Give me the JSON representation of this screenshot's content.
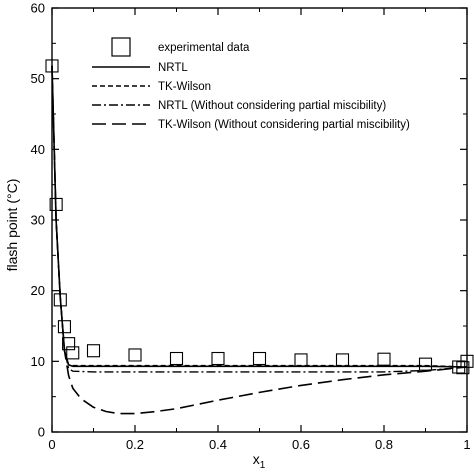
{
  "chart_data": {
    "type": "line",
    "title": "",
    "xlabel": "x",
    "xlabel_sub": "1",
    "ylabel": "flash point (°C)",
    "xlim": [
      0,
      1
    ],
    "ylim": [
      0,
      60
    ],
    "x_ticks": [
      0,
      0.2,
      0.4,
      0.6,
      0.8,
      1
    ],
    "x_tick_labels": [
      "0",
      "0.2",
      "0.4",
      "0.6",
      "0.8",
      "1"
    ],
    "y_ticks": [
      0,
      10,
      20,
      30,
      40,
      50,
      60
    ],
    "y_tick_labels": [
      "0",
      "10",
      "20",
      "30",
      "40",
      "50",
      "60"
    ],
    "grid": false,
    "legend_position": "top-right",
    "series": [
      {
        "name": "experimental data",
        "style": "square-marker",
        "x": [
          0.0,
          0.01,
          0.02,
          0.03,
          0.04,
          0.05,
          0.1,
          0.2,
          0.3,
          0.4,
          0.5,
          0.6,
          0.7,
          0.8,
          0.9,
          0.98,
          0.99,
          1.0
        ],
        "y": [
          51.8,
          32.2,
          18.7,
          14.9,
          12.5,
          11.2,
          11.5,
          10.9,
          10.4,
          10.4,
          10.4,
          10.2,
          10.2,
          10.3,
          9.6,
          9.2,
          9.1,
          10.0
        ]
      },
      {
        "name": "NRTL",
        "style": "solid",
        "x": [
          0.0,
          0.01,
          0.02,
          0.03,
          0.04,
          0.05,
          0.2,
          0.4,
          0.6,
          0.8,
          0.9,
          1.0
        ],
        "y": [
          51.8,
          30.0,
          19.0,
          11.5,
          9.5,
          9.3,
          9.3,
          9.3,
          9.3,
          9.3,
          9.3,
          9.2
        ]
      },
      {
        "name": "TK-Wilson",
        "style": "dashed-short",
        "x": [
          0.0,
          0.01,
          0.02,
          0.03,
          0.04,
          0.05,
          0.2,
          0.4,
          0.6,
          0.8,
          0.9,
          1.0
        ],
        "y": [
          51.8,
          30.0,
          19.0,
          11.5,
          9.5,
          9.4,
          9.4,
          9.4,
          9.4,
          9.4,
          9.4,
          9.2
        ]
      },
      {
        "name": "NRTL (Without considering partial miscibility)",
        "style": "dash-dot",
        "x": [
          0.0,
          0.01,
          0.02,
          0.03,
          0.04,
          0.05,
          0.1,
          0.2,
          0.3,
          0.4,
          0.5,
          0.6,
          0.7,
          0.8,
          0.9,
          1.0
        ],
        "y": [
          51.8,
          30.0,
          19.0,
          11.5,
          9.0,
          8.6,
          8.5,
          8.5,
          8.5,
          8.5,
          8.5,
          8.5,
          8.5,
          8.5,
          8.7,
          9.2
        ]
      },
      {
        "name": "TK-Wilson (Without considering partial miscibility)",
        "style": "dashed-long",
        "x": [
          0.0,
          0.01,
          0.02,
          0.03,
          0.04,
          0.05,
          0.07,
          0.1,
          0.13,
          0.16,
          0.2,
          0.25,
          0.3,
          0.4,
          0.5,
          0.6,
          0.7,
          0.8,
          0.9,
          1.0
        ],
        "y": [
          51.8,
          30.0,
          19.0,
          11.5,
          8.0,
          6.2,
          4.7,
          3.5,
          2.9,
          2.6,
          2.6,
          2.9,
          3.3,
          4.5,
          5.6,
          6.6,
          7.4,
          8.1,
          8.6,
          9.2
        ]
      }
    ]
  }
}
